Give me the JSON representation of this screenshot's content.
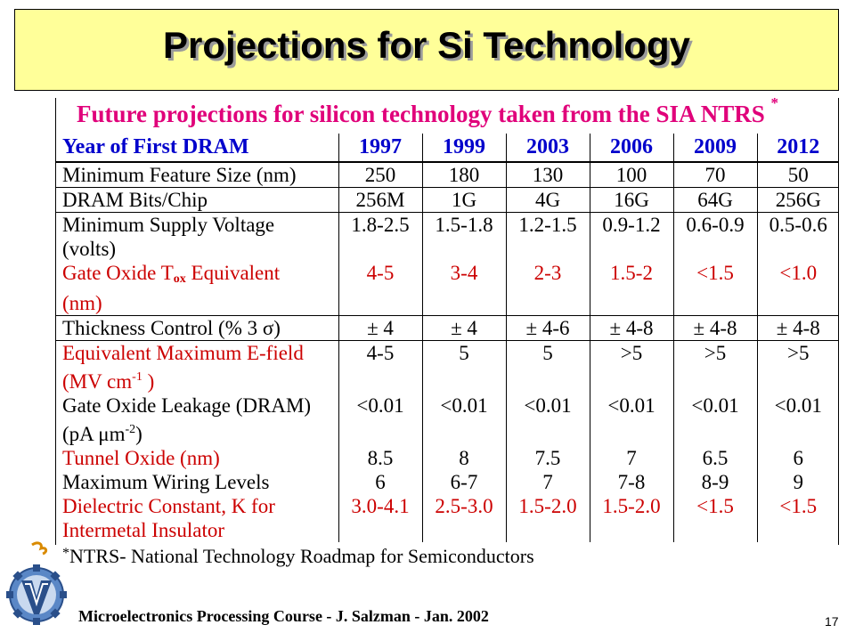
{
  "slide": {
    "title": "Projections for Si Technology",
    "table_title": "Future projections for silicon technology taken from the SIA NTRS",
    "table_title_mark": "*",
    "footnote_mark": "*",
    "footnote": "NTRS- National Technology Roadmap for Semiconductors",
    "footer": "Microelectronics Processing Course - J. Salzman - Jan. 2002",
    "page_number": "17"
  },
  "table": {
    "header_label": "Year of First DRAM",
    "years": [
      "1997",
      "1999",
      "2003",
      "2006",
      "2009",
      "2012"
    ],
    "rows": [
      {
        "label": "Minimum Feature Size (nm)",
        "values": [
          "250",
          "180",
          "130",
          "100",
          "70",
          "50"
        ]
      },
      {
        "label": "DRAM Bits/Chip",
        "values": [
          "256M",
          "1G",
          "4G",
          "16G",
          "64G",
          "256G"
        ]
      },
      {
        "label": "Minimum Supply Voltage",
        "label2": "(volts)",
        "values": [
          "1.8-2.5",
          "1.5-1.8",
          "1.2-1.5",
          "0.9-1.2",
          "0.6-0.9",
          "0.5-0.6"
        ]
      },
      {
        "label_pre": "Gate Oxide T",
        "label_sub": "ox",
        "label_post": " Equivalent",
        "label2": "(nm)",
        "values": [
          "4-5",
          "3-4",
          "2-3",
          "1.5-2",
          "<1.5",
          "<1.0"
        ]
      },
      {
        "label": "Thickness Control (% 3 σ)",
        "values": [
          "± 4",
          "± 4",
          "± 4-6",
          "± 4-8",
          "± 4-8",
          "± 4-8"
        ]
      },
      {
        "label": "Equivalent Maximum E-field",
        "label2_pre": "(MV cm",
        "label2_sup": "-1",
        "label2_post": " )",
        "values": [
          "4-5",
          "5",
          "5",
          ">5",
          ">5",
          ">5"
        ]
      },
      {
        "label": "Gate Oxide Leakage (DRAM)",
        "label2_pre": "(pA μm",
        "label2_sup": "-2",
        "label2_post": ")",
        "values": [
          "<0.01",
          "<0.01",
          "<0.01",
          "<0.01",
          "<0.01",
          "<0.01"
        ]
      },
      {
        "label": "Tunnel Oxide (nm)",
        "values": [
          "8.5",
          "8",
          "7.5",
          "7",
          "6.5",
          "6"
        ]
      },
      {
        "label": "Maximum Wiring Levels",
        "values": [
          "6",
          "6-7",
          "7",
          "7-8",
          "8-9",
          "9"
        ]
      },
      {
        "label": "Dielectric Constant, K for",
        "label2": "Intermetal Insulator",
        "values": [
          "3.0-4.1",
          "2.5-3.0",
          "1.5-2.0",
          "1.5-2.0",
          "<1.5",
          "<1.5"
        ]
      }
    ]
  },
  "colors": {
    "title_bg": "#ffff99",
    "table_title": "#e0007a",
    "header": "#0000cc",
    "highlight_rows": "#cc0000"
  },
  "icons": [
    "technion-logo"
  ]
}
